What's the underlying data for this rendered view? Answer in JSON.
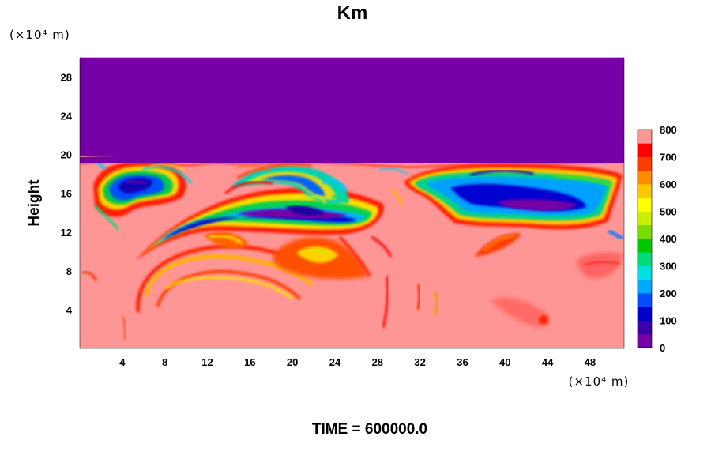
{
  "chart_data": {
    "type": "heatmap",
    "title": "Km",
    "ylabel": "Height",
    "x_unit_label": "(×10⁴ m)",
    "y_unit_label": "(×10⁴ m)",
    "xlim": [
      0,
      51.2
    ],
    "ylim": [
      0,
      30
    ],
    "x_ticks": [
      4,
      8,
      12,
      16,
      20,
      24,
      28,
      32,
      36,
      40,
      44,
      48
    ],
    "y_ticks": [
      4,
      8,
      12,
      16,
      20,
      24,
      28
    ],
    "x_tick_labels": [
      "4",
      "8",
      "12",
      "16",
      "20",
      "24",
      "28",
      "32",
      "36",
      "40",
      "44",
      "48"
    ],
    "y_tick_labels": [
      "4",
      "8",
      "12",
      "16",
      "20",
      "24",
      "28"
    ],
    "colorbar": {
      "min": 0,
      "max": 800,
      "ticks": [
        0,
        100,
        200,
        300,
        400,
        500,
        600,
        700,
        800
      ],
      "tick_labels": [
        "0",
        "100",
        "200",
        "300",
        "400",
        "500",
        "600",
        "700",
        "800"
      ],
      "colors": [
        "#7400a6",
        "#3c00a8",
        "#0000c8",
        "#0050ff",
        "#00a8ff",
        "#00e0e0",
        "#00dc78",
        "#00c800",
        "#78dc00",
        "#c8f000",
        "#ffff00",
        "#ffc800",
        "#ff8c00",
        "#ff3c00",
        "#ff0000",
        "#ff9696"
      ]
    },
    "regions": {
      "above_top_value": 0,
      "top_level_y": 19.8,
      "background_value": 800,
      "features": [
        {
          "x": 5.5,
          "y": 15.8,
          "value": 60
        },
        {
          "x": 20,
          "y": 14,
          "value": 100
        },
        {
          "x": 12,
          "y": 13,
          "value": 80
        },
        {
          "x": 24,
          "y": 13.5,
          "value": 20
        },
        {
          "x": 42,
          "y": 15,
          "value": 60
        },
        {
          "x": 46,
          "y": 14,
          "value": 20
        },
        {
          "x": 14,
          "y": 9.5,
          "value": 650
        },
        {
          "x": 22,
          "y": 9.8,
          "value": 500
        },
        {
          "x": 38,
          "y": 10,
          "value": 700
        },
        {
          "x": 44,
          "y": 3,
          "value": 720
        }
      ]
    }
  },
  "footer": {
    "time_label": "TIME = 600000.0"
  }
}
